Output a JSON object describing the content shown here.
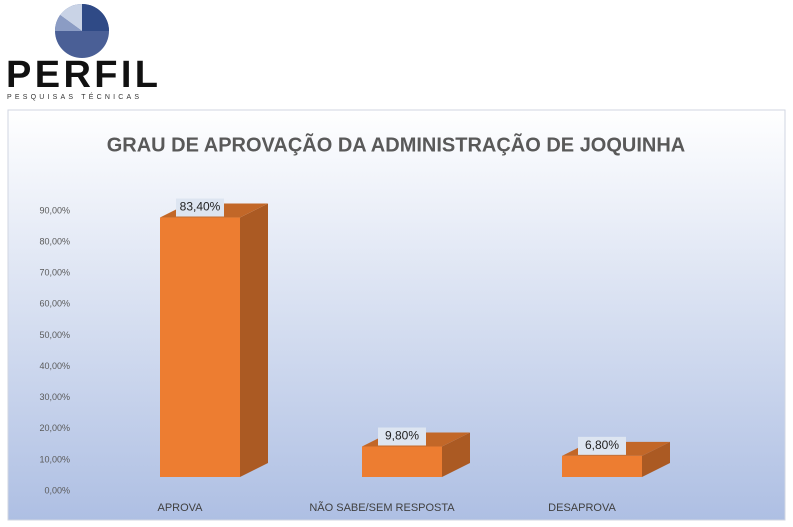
{
  "logo": {
    "name": "PERFIL",
    "tagline": "PESQUISAS TÉCNICAS"
  },
  "chart_data": {
    "type": "bar3d",
    "title": "GRAU DE APROVAÇÃO DA ADMINISTRAÇÃO DE JOQUINHA",
    "categories": [
      "APROVA",
      "NÃO SABE/SEM RESPOSTA",
      "DESAPROVA"
    ],
    "values": [
      83.4,
      9.8,
      6.8
    ],
    "value_labels": [
      "83,40%",
      "9,80%",
      "6,80%"
    ],
    "color": "#ed7d31",
    "ylim": [
      0,
      90
    ],
    "yticks": [
      {
        "value": 0,
        "label": "0,00%"
      },
      {
        "value": 10,
        "label": "10,00%"
      },
      {
        "value": 20,
        "label": "20,00%"
      },
      {
        "value": 30,
        "label": "30,00%"
      },
      {
        "value": 40,
        "label": "40,00%"
      },
      {
        "value": 50,
        "label": "50,00%"
      },
      {
        "value": 60,
        "label": "60,00%"
      },
      {
        "value": 70,
        "label": "70,00%"
      },
      {
        "value": 80,
        "label": "80,00%"
      },
      {
        "value": 90,
        "label": "90,00%"
      }
    ],
    "grid": false
  }
}
